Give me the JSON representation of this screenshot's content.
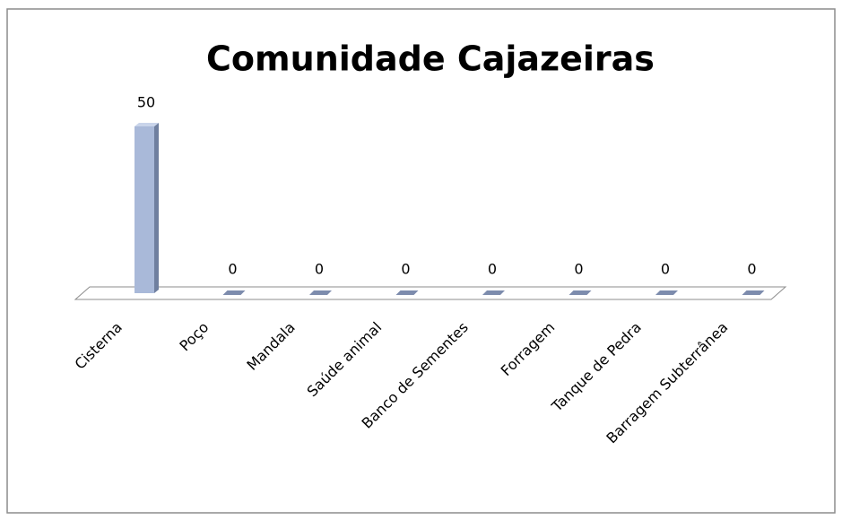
{
  "chart_data": {
    "type": "bar3d",
    "title": "Comunidade Cajazeiras",
    "categories": [
      "Cisterna",
      "Poço",
      "Mandala",
      "Saúde animal",
      "Banco de Sementes",
      "Forragem",
      "Tanque de Pedra",
      "Barragem Subterrânea"
    ],
    "values": [
      50,
      0,
      0,
      0,
      0,
      0,
      0,
      0
    ],
    "color": "#a9b9d9"
  }
}
